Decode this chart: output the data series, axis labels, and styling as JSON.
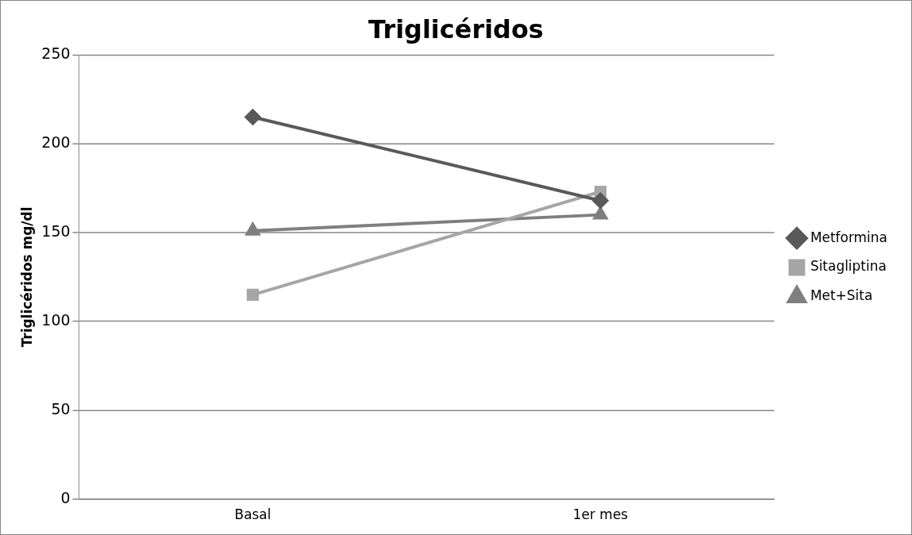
{
  "chart_data": {
    "type": "line",
    "title": "Triglicéridos",
    "ylabel": "Triglicéridos mg/dl",
    "categories": [
      "Basal",
      "1er mes"
    ],
    "series": [
      {
        "name": "Metformina",
        "color": "#595959",
        "values": [
          215,
          168
        ],
        "marker": "diamond"
      },
      {
        "name": "Sitagliptina",
        "color": "#a6a6a6",
        "values": [
          115,
          173
        ],
        "marker": "square"
      },
      {
        "name": "Met+Sita",
        "color": "#7f7f7f",
        "values": [
          151,
          160
        ],
        "marker": "triangle"
      }
    ],
    "ylim": [
      0,
      250
    ],
    "yticks": [
      0,
      50,
      100,
      150,
      200,
      250
    ],
    "grid": "y",
    "legend": "right",
    "line_style": "solid"
  }
}
